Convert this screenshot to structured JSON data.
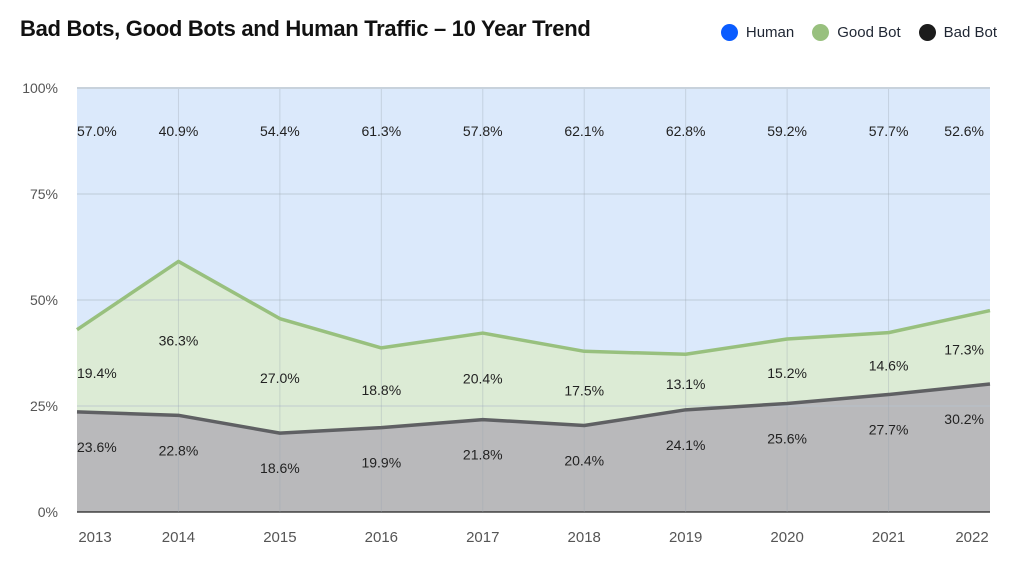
{
  "chart_data": {
    "type": "area",
    "stacked": true,
    "title": "Bad Bots, Good Bots and Human Traffic – 10 Year Trend",
    "categories": [
      "2013",
      "2014",
      "2015",
      "2016",
      "2017",
      "2018",
      "2019",
      "2020",
      "2021",
      "2022"
    ],
    "series": [
      {
        "name": "Bad Bot",
        "color": "#1c1c1c",
        "fill": "#b9b9bb",
        "line": "#5f6063",
        "values": [
          23.6,
          22.8,
          18.6,
          19.9,
          21.8,
          20.4,
          24.1,
          25.6,
          27.7,
          30.2
        ]
      },
      {
        "name": "Good Bot",
        "color": "#98c07e",
        "fill": "#dcebd5",
        "line": "#98c07e",
        "values": [
          19.4,
          36.3,
          27.0,
          18.8,
          20.4,
          17.5,
          13.1,
          15.2,
          14.6,
          17.3
        ]
      },
      {
        "name": "Human",
        "color": "#0a5cff",
        "fill": "#dbe9fb",
        "line": "#dbe9fb",
        "values": [
          57.0,
          40.9,
          54.4,
          61.3,
          57.8,
          62.1,
          62.8,
          59.2,
          57.7,
          52.6
        ]
      }
    ],
    "yticks": [
      "0%",
      "25%",
      "50%",
      "75%",
      "100%"
    ],
    "ylim": [
      0,
      100
    ],
    "grid": true,
    "legend": "top-right",
    "legend_order": [
      "Human",
      "Good Bot",
      "Bad Bot"
    ]
  }
}
